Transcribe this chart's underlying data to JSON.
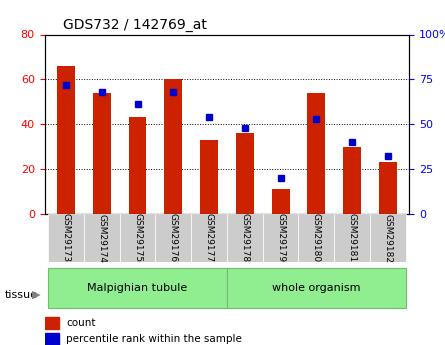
{
  "title": "GDS732 / 142769_at",
  "samples": [
    "GSM29173",
    "GSM29174",
    "GSM29175",
    "GSM29176",
    "GSM29177",
    "GSM29178",
    "GSM29179",
    "GSM29180",
    "GSM29181",
    "GSM29182"
  ],
  "counts": [
    66,
    54,
    43,
    60,
    33,
    36,
    11,
    54,
    30,
    23
  ],
  "percentiles": [
    72,
    68,
    61,
    68,
    54,
    48,
    20,
    53,
    40,
    32
  ],
  "tissue_groups": [
    {
      "label": "Malpighian tubule",
      "start": 0,
      "end": 5,
      "color": "#90EE90"
    },
    {
      "label": "whole organism",
      "start": 5,
      "end": 10,
      "color": "#98FB98"
    }
  ],
  "left_ylim": [
    0,
    80
  ],
  "right_ylim": [
    0,
    100
  ],
  "left_yticks": [
    0,
    20,
    40,
    60,
    80
  ],
  "right_yticks": [
    0,
    25,
    50,
    75,
    100
  ],
  "right_yticklabels": [
    "0",
    "25",
    "50",
    "75",
    "100%"
  ],
  "bar_color": "#CC2200",
  "dot_color": "#0000CC",
  "bar_width": 0.5,
  "grid_color": "#000000",
  "bg_color": "#FFFFFF",
  "tick_label_bg": "#DDDDDD",
  "tissue_label": "tissue",
  "legend_count": "count",
  "legend_pct": "percentile rank within the sample"
}
